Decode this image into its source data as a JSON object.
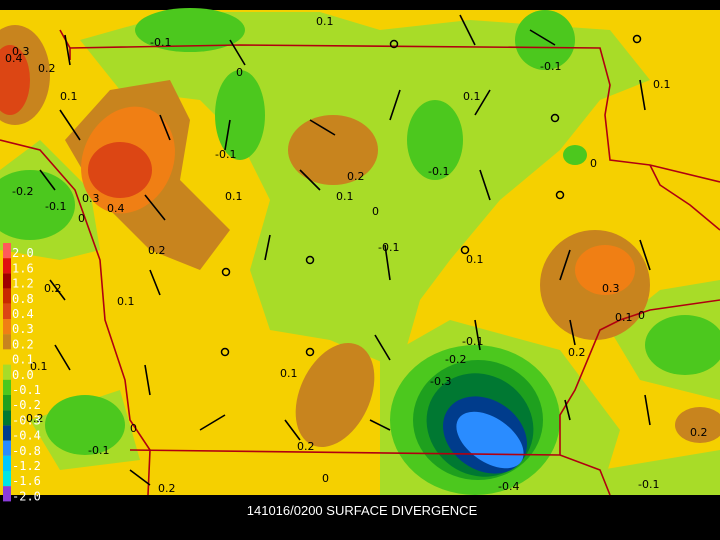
{
  "title": "141016/0200 SURFACE DIVERGENCE",
  "legend": [
    {
      "label": "2.0",
      "color": "#ff5a5a"
    },
    {
      "label": "1.6",
      "color": "#e01010"
    },
    {
      "label": "1.2",
      "color": "#a00000"
    },
    {
      "label": "0.8",
      "color": "#c82800"
    },
    {
      "label": "0.4",
      "color": "#dc4614"
    },
    {
      "label": "0.3",
      "color": "#f07f14"
    },
    {
      "label": "0.2",
      "color": "#c8841e"
    },
    {
      "label": "0.1",
      "color": "#f5d000"
    },
    {
      "label": "0.0",
      "color": "#a8dc28"
    },
    {
      "label": "-0.1",
      "color": "#4cc81e"
    },
    {
      "label": "-0.2",
      "color": "#1ea01e"
    },
    {
      "label": "-0.3",
      "color": "#007832"
    },
    {
      "label": "-0.4",
      "color": "#003c8c"
    },
    {
      "label": "-0.8",
      "color": "#2a8cff"
    },
    {
      "label": "-1.2",
      "color": "#00c8ff"
    },
    {
      "label": "-1.6",
      "color": "#00e6e6"
    },
    {
      "label": "-2.0",
      "color": "#8c3cdc"
    }
  ],
  "contour_labels": [
    "0.3",
    "0.4",
    "0.2",
    "0.1",
    "-0.1",
    "0",
    "0.1",
    "-0.1",
    "0.1",
    "0",
    "0.1",
    "-0.1",
    "0.2",
    "0.1",
    "0",
    "-0.2",
    "-0.1",
    "0.3",
    "0.4",
    "0.1",
    "0.2",
    "0",
    "-0.1",
    "0.1",
    "0.3",
    "0.1",
    "0",
    "0.2",
    "0.2",
    "0.1",
    "-0.1",
    "-0.2",
    "-0.3",
    "0.1",
    "0.2",
    "0",
    "-0.1",
    "-0.4",
    "0.2",
    "-0.2",
    "0",
    "-0.1",
    "0.2",
    "0.1"
  ]
}
